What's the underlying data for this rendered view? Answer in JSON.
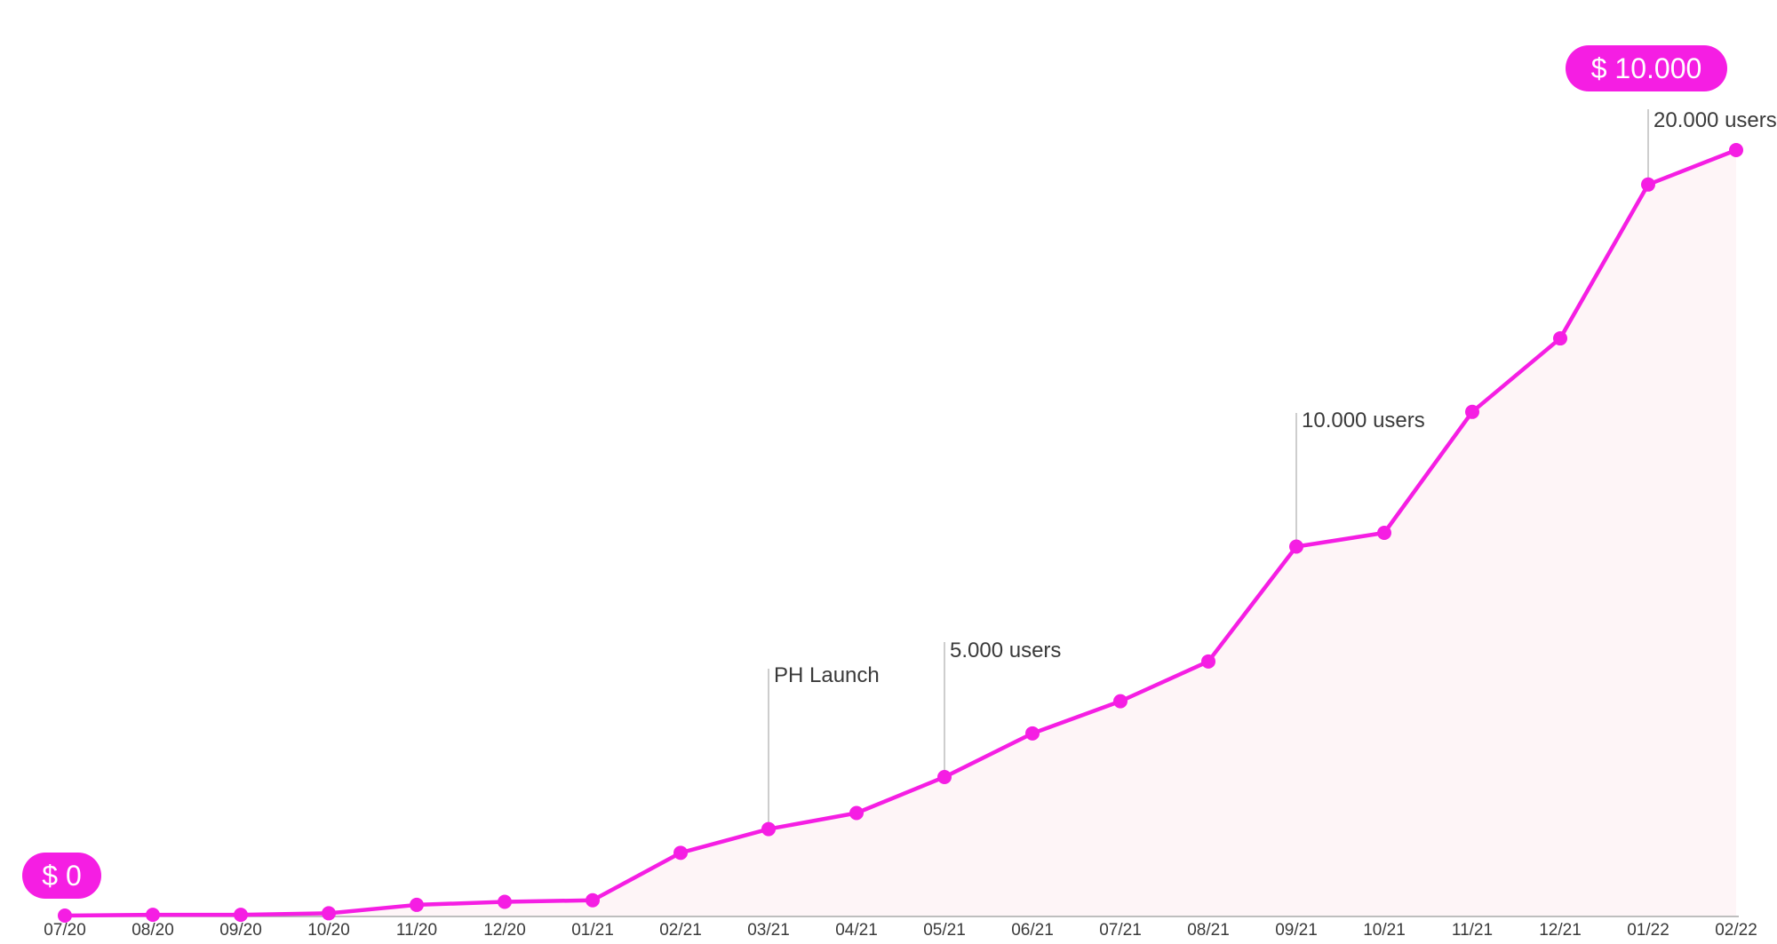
{
  "chart_data": {
    "type": "line",
    "title": "",
    "xlabel": "",
    "ylabel": "",
    "categories": [
      "07/20",
      "08/20",
      "09/20",
      "10/20",
      "11/20",
      "12/20",
      "01/21",
      "02/21",
      "03/21",
      "04/21",
      "05/21",
      "06/21",
      "07/21",
      "08/21",
      "09/21",
      "10/21",
      "11/21",
      "12/21",
      "01/22",
      "02/22"
    ],
    "values": [
      0,
      10,
      10,
      30,
      140,
      180,
      200,
      820,
      1130,
      1340,
      1810,
      2380,
      2800,
      3320,
      4820,
      5000,
      6580,
      7540,
      9550,
      10000
    ],
    "ylim": [
      0,
      10000
    ],
    "grid": false,
    "legend": "none",
    "colors": {
      "line": "#f51ee3",
      "area": "#fef5f7",
      "axis": "#a9a9a9",
      "pill_text": "#ffffff",
      "annotation_line": "#b8b8b8",
      "text": "#3a3a3a"
    },
    "start_label": "$ 0",
    "end_label": "$ 10.000",
    "annotations": [
      {
        "category": "03/21",
        "label": "PH Launch"
      },
      {
        "category": "05/21",
        "label": "5.000 users"
      },
      {
        "category": "09/21",
        "label": "10.000 users"
      },
      {
        "category": "01/22",
        "label": "20.000 users"
      }
    ]
  }
}
